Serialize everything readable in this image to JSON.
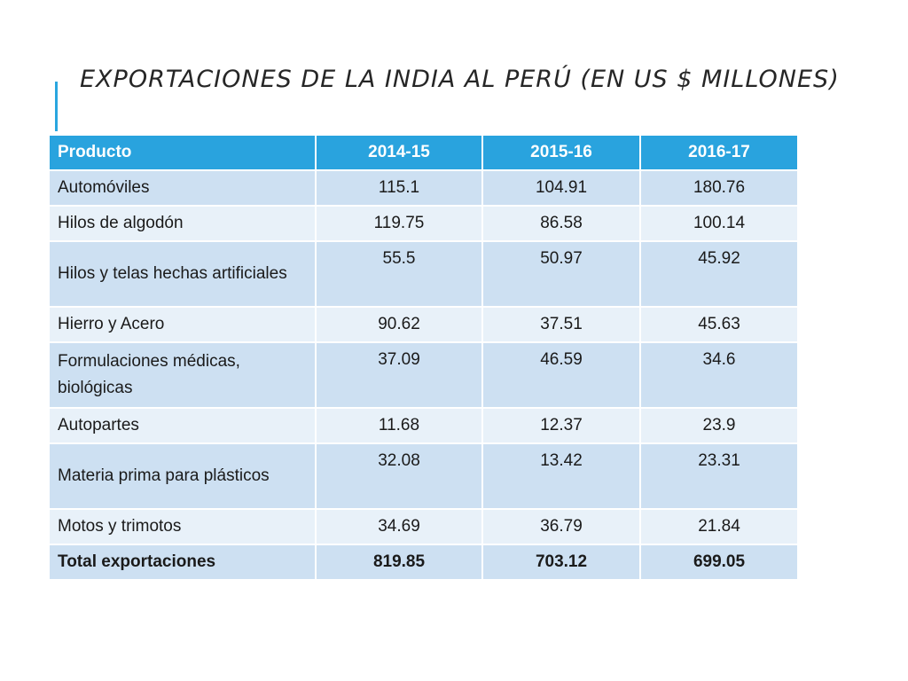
{
  "slide": {
    "title": "Exportaciones de la India al Perú (en US $ millones)"
  },
  "table": {
    "headers": [
      "Producto",
      "2014-15",
      "2015-16",
      "2016-17"
    ],
    "rows": [
      [
        "Automóviles",
        "115.1",
        "104.91",
        "180.76"
      ],
      [
        "Hilos de algodón",
        "119.75",
        "86.58",
        "100.14"
      ],
      [
        "Hilos y telas hechas artificiales",
        "55.5",
        "50.97",
        "45.92"
      ],
      [
        "Hierro y Acero",
        "90.62",
        "37.51",
        "45.63"
      ],
      [
        "Formulaciones médicas, biológicas",
        "37.09",
        "46.59",
        "34.6"
      ],
      [
        "Autopartes",
        "11.68",
        "12.37",
        "23.9"
      ],
      [
        "Materia prima para plásticos",
        "32.08",
        "13.42",
        "23.31"
      ],
      [
        "Motos y trimotos",
        "34.69",
        "36.79",
        "21.84"
      ]
    ],
    "total": [
      "Total exportaciones",
      "819.85",
      "703.12",
      "699.05"
    ]
  },
  "colors": {
    "accent": "#29a3de",
    "row_dark": "#cde0f2",
    "row_light": "#e8f1f9"
  }
}
